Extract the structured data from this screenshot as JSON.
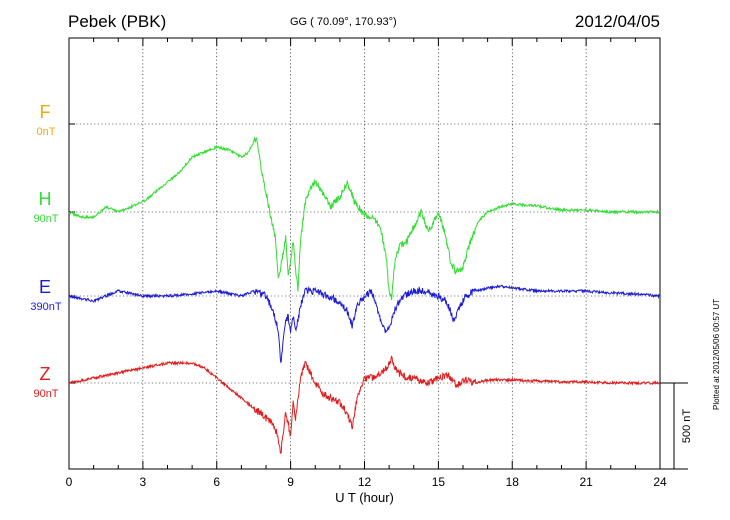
{
  "header": {
    "station": "Pebek (PBK)",
    "coords": "GG ( 70.09°, 170.93°)",
    "date": "2012/04/05"
  },
  "footer": {
    "plotted": "Plotted at 2012/05/06 00:57 UT"
  },
  "chart_data": {
    "type": "line",
    "xlabel": "U T (hour)",
    "xlim": [
      0,
      24
    ],
    "xticks": [
      0,
      3,
      6,
      9,
      12,
      15,
      18,
      21,
      24
    ],
    "grid": true,
    "scale_bar": {
      "label": "500 nT",
      "value": 500
    },
    "series": [
      {
        "name": "F",
        "offset_label": "0nT",
        "color": "#f5a800",
        "x": [],
        "y": []
      },
      {
        "name": "H",
        "offset_label": "90nT",
        "color": "#33dd33",
        "x": [
          0,
          0.5,
          1,
          1.5,
          2,
          2.5,
          3,
          3.5,
          4,
          4.5,
          5,
          5.5,
          6,
          6.5,
          7,
          7.3,
          7.6,
          7.8,
          8,
          8.2,
          8.4,
          8.5,
          8.6,
          8.7,
          8.8,
          8.9,
          9.0,
          9.1,
          9.2,
          9.3,
          9.4,
          9.5,
          9.6,
          9.8,
          10,
          10.3,
          10.6,
          11,
          11.3,
          11.6,
          11.9,
          12.2,
          12.5,
          12.7,
          12.9,
          13.0,
          13.1,
          13.2,
          13.4,
          13.7,
          14,
          14.3,
          14.6,
          15,
          15.3,
          15.5,
          15.7,
          16,
          16.3,
          16.6,
          17,
          17.5,
          18,
          19,
          20,
          21,
          22,
          23,
          24
        ],
        "y": [
          0,
          -5,
          -5,
          5,
          0,
          5,
          10,
          20,
          30,
          40,
          55,
          60,
          65,
          62,
          55,
          60,
          75,
          45,
          20,
          -5,
          -30,
          -65,
          -55,
          -40,
          -25,
          -60,
          -50,
          -30,
          -55,
          -80,
          -30,
          -10,
          10,
          25,
          30,
          20,
          5,
          15,
          30,
          10,
          0,
          -5,
          -10,
          -20,
          -50,
          -80,
          -85,
          -55,
          -35,
          -30,
          -15,
          0,
          -20,
          0,
          -25,
          -50,
          -60,
          -55,
          -30,
          -10,
          0,
          5,
          8,
          6,
          2,
          2,
          0,
          0,
          0
        ]
      },
      {
        "name": "E",
        "offset_label": "390nT",
        "color": "#1c1cd4",
        "x": [
          0,
          1,
          2,
          3,
          4,
          5,
          6,
          7,
          7.5,
          8,
          8.3,
          8.5,
          8.6,
          8.7,
          8.8,
          8.9,
          9.0,
          9.1,
          9.2,
          9.4,
          9.6,
          10,
          10.5,
          11,
          11.3,
          11.5,
          11.7,
          12,
          12.3,
          12.5,
          12.7,
          12.9,
          13.0,
          13.1,
          13.2,
          13.4,
          13.6,
          14,
          14.5,
          15,
          15.3,
          15.5,
          15.6,
          15.7,
          15.9,
          16.1,
          16.5,
          17,
          17.5,
          18,
          19,
          20,
          21,
          22,
          23,
          24
        ],
        "y": [
          0,
          -5,
          5,
          0,
          0,
          2,
          5,
          0,
          5,
          0,
          -15,
          -35,
          -70,
          -45,
          -25,
          -20,
          -35,
          -20,
          -35,
          -10,
          5,
          5,
          0,
          -5,
          -15,
          -30,
          -10,
          0,
          5,
          -10,
          -30,
          -35,
          -30,
          -25,
          -15,
          -5,
          0,
          5,
          5,
          0,
          -5,
          -15,
          -25,
          -20,
          -10,
          0,
          5,
          8,
          10,
          8,
          5,
          5,
          5,
          3,
          2,
          0
        ]
      },
      {
        "name": "Z",
        "offset_label": "90nT",
        "color": "#e01c1c",
        "x": [
          0,
          1,
          2,
          3,
          4,
          5,
          5.5,
          6,
          6.5,
          7,
          7.5,
          8,
          8.3,
          8.5,
          8.6,
          8.7,
          8.8,
          8.9,
          9.0,
          9.1,
          9.2,
          9.4,
          9.6,
          9.8,
          10,
          10.3,
          10.6,
          11,
          11.3,
          11.5,
          11.7,
          12,
          12.3,
          12.6,
          12.9,
          13.0,
          13.1,
          13.2,
          13.4,
          13.7,
          14,
          14.5,
          15,
          15.4,
          15.7,
          16,
          16.5,
          17,
          18,
          19,
          20,
          21,
          22,
          23,
          24
        ],
        "y": [
          0,
          5,
          10,
          15,
          20,
          20,
          15,
          5,
          -5,
          -15,
          -25,
          -35,
          -40,
          -55,
          -70,
          -50,
          -30,
          -40,
          -55,
          -20,
          -35,
          5,
          20,
          10,
          0,
          -10,
          -15,
          -20,
          -30,
          -45,
          -15,
          5,
          5,
          10,
          15,
          20,
          25,
          18,
          10,
          5,
          5,
          0,
          5,
          8,
          -2,
          3,
          0,
          3,
          3,
          2,
          1,
          1,
          0,
          0,
          0
        ]
      }
    ]
  }
}
